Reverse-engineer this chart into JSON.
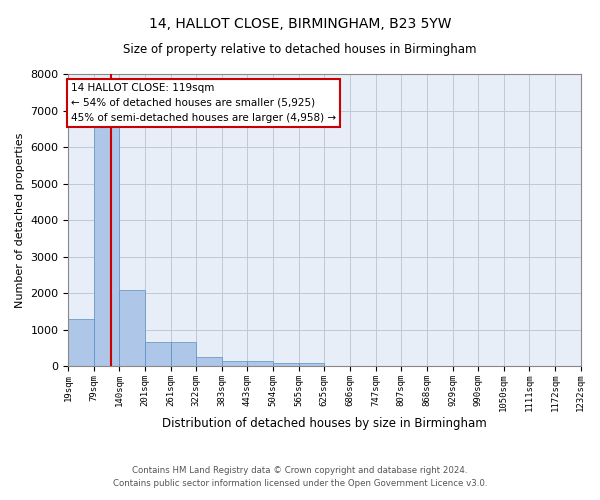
{
  "title1": "14, HALLOT CLOSE, BIRMINGHAM, B23 5YW",
  "title2": "Size of property relative to detached houses in Birmingham",
  "xlabel": "Distribution of detached houses by size in Birmingham",
  "ylabel": "Number of detached properties",
  "footer1": "Contains HM Land Registry data © Crown copyright and database right 2024.",
  "footer2": "Contains public sector information licensed under the Open Government Licence v3.0.",
  "annotation_title": "14 HALLOT CLOSE: 119sqm",
  "annotation_line1": "← 54% of detached houses are smaller (5,925)",
  "annotation_line2": "45% of semi-detached houses are larger (4,958) →",
  "property_size_sqm": 119,
  "bar_edges": [
    19,
    79,
    140,
    201,
    261,
    322,
    383,
    443,
    504,
    565,
    625,
    686,
    747,
    807,
    868,
    929,
    990,
    1050,
    1111,
    1172,
    1232
  ],
  "bar_heights": [
    1300,
    6550,
    2080,
    650,
    650,
    260,
    130,
    130,
    100,
    100,
    0,
    0,
    0,
    0,
    0,
    0,
    0,
    0,
    0,
    0
  ],
  "bar_color": "#aec6e8",
  "bar_edge_color": "#5a8fc0",
  "vline_color": "#cc0000",
  "vline_x": 119,
  "annotation_box_color": "#cc0000",
  "bg_color": "#e8eef8",
  "grid_color": "#c0c8d8",
  "ylim": [
    0,
    8000
  ],
  "xlim": [
    19,
    1232
  ]
}
